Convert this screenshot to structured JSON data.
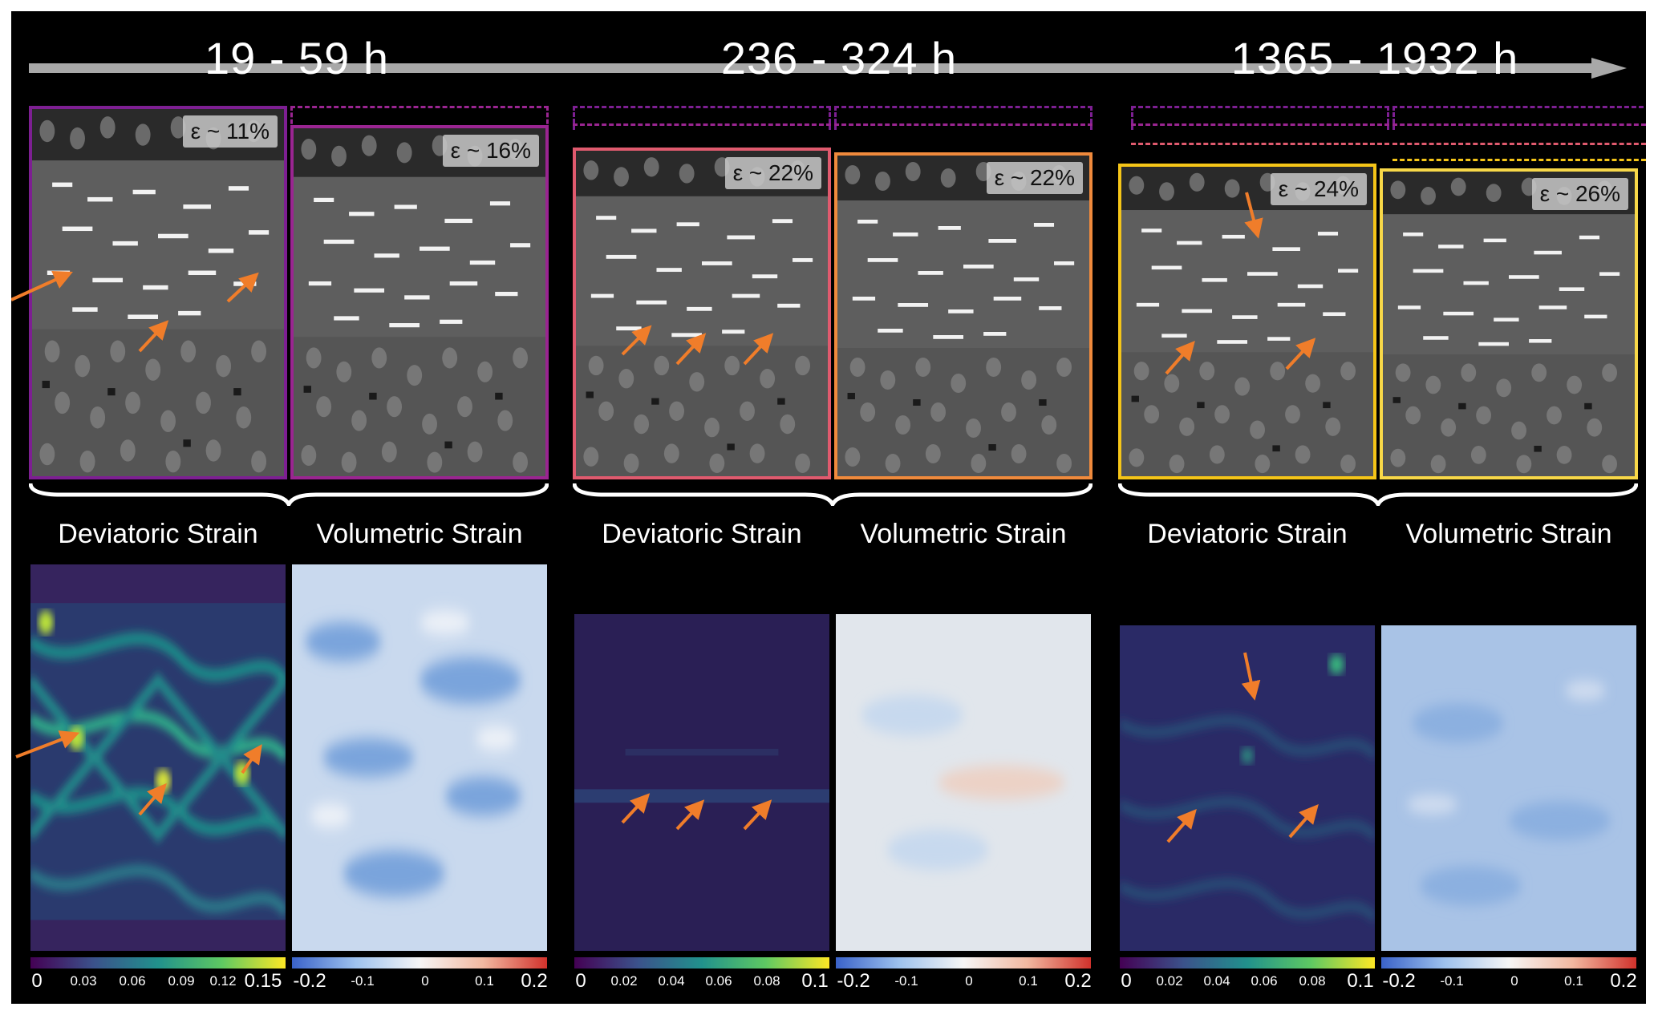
{
  "time_labels": [
    "19 - 59 h",
    "236 - 324 h",
    "1365 - 1932 h"
  ],
  "strain_badges": [
    "ε ~ 11%",
    "ε ~ 16%",
    "ε ~ 22%",
    "ε ~ 22%",
    "ε ~ 24%",
    "ε ~ 26%"
  ],
  "map_titles": {
    "deviatoric": "Deviatoric Strain",
    "volumetric": "Volumetric Strain"
  },
  "colorbars": {
    "dev_1": {
      "ticks": [
        "0",
        "0.03",
        "0.06",
        "0.09",
        "0.12",
        "0.15"
      ]
    },
    "vol_1": {
      "ticks": [
        "-0.2",
        "-0.1",
        "0",
        "0.1",
        "0.2"
      ]
    },
    "dev_2": {
      "ticks": [
        "0",
        "0.02",
        "0.04",
        "0.06",
        "0.08",
        "0.1"
      ]
    },
    "vol_2": {
      "ticks": [
        "-0.2",
        "-0.1",
        "0",
        "0.1",
        "0.2"
      ]
    },
    "dev_3": {
      "ticks": [
        "0",
        "0.02",
        "0.04",
        "0.06",
        "0.08",
        "0.1"
      ]
    },
    "vol_3": {
      "ticks": [
        "-0.2",
        "-0.1",
        "0",
        "0.1",
        "0.2"
      ]
    }
  },
  "colors": {
    "background": "#000000",
    "timeline_arrow": "#a8a8a8",
    "pointer_arrows": "#f07d2a",
    "frame_11": "#7d1f92",
    "frame_16": "#9a2591",
    "frame_22_dev": "#e05a6e",
    "frame_22_vol": "#f08a3c",
    "frame_24": "#f5c518",
    "frame_26": "#f8d848"
  },
  "icons": [
    "timeline-arrow-icon",
    "pointer-arrow-icon",
    "curly-brace-icon"
  ]
}
